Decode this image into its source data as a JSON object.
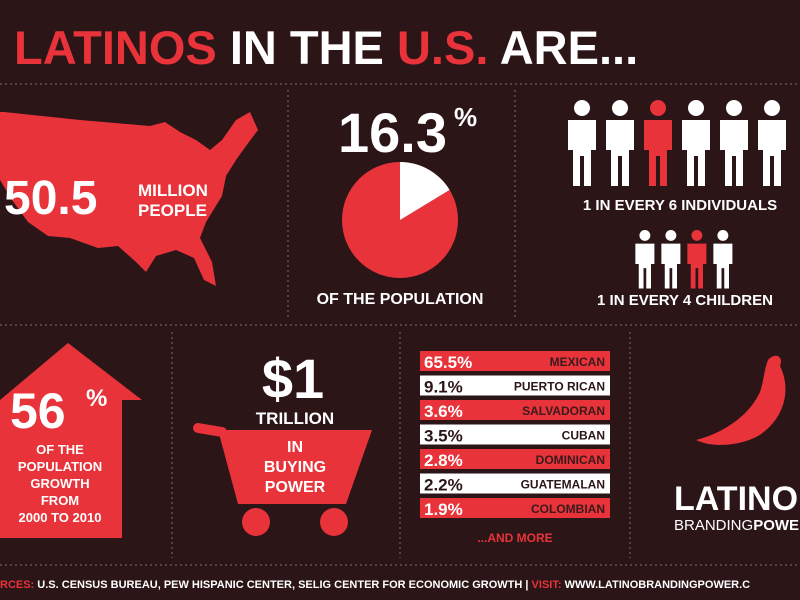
{
  "header": {
    "title": {
      "word1": "LATINOS",
      "word2": "IN THE",
      "word3": "U.S.",
      "word4": "ARE..."
    }
  },
  "population": {
    "number": "50.5",
    "unit_line1": "MILLION",
    "unit_line2": "PEOPLE"
  },
  "share": {
    "value": 16.3,
    "unit": "%",
    "caption": "OF THE POPULATION"
  },
  "ratios": {
    "individuals": "1 IN EVERY 6 INDIVIDUALS",
    "children": "1 IN EVERY 4 CHILDREN"
  },
  "growth": {
    "number": "56",
    "unit": "%",
    "lines": [
      "OF THE",
      "POPULATION",
      "GROWTH",
      "FROM",
      "2000 TO 2010"
    ]
  },
  "buying_power": {
    "amount": "$1",
    "unit": "TRILLION",
    "lines": [
      "IN",
      "BUYING",
      "POWER"
    ]
  },
  "origins": {
    "rows": [
      [
        "65.5%",
        "MEXICAN"
      ],
      [
        "9.1%",
        "PUERTO RICAN"
      ],
      [
        "3.6%",
        "SALVADORAN"
      ],
      [
        "3.5%",
        "CUBAN"
      ],
      [
        "2.8%",
        "DOMINICAN"
      ],
      [
        "2.2%",
        "GUATEMALAN"
      ],
      [
        "1.9%",
        "COLOMBIAN"
      ]
    ],
    "more": "...AND MORE"
  },
  "logo": {
    "line1": "LATINO",
    "line2a": "BRANDING",
    "line2b": "POWER"
  },
  "footer": {
    "sources_label": "RCES:",
    "sources": "U.S. CENSUS BUREAU, PEW HISPANIC CENTER, SELIG CENTER FOR ECONOMIC GROWTH",
    "separator": "|",
    "visit_label": "VISIT:",
    "url": "WWW.LATINOBRANDINGPOWER.C"
  }
}
